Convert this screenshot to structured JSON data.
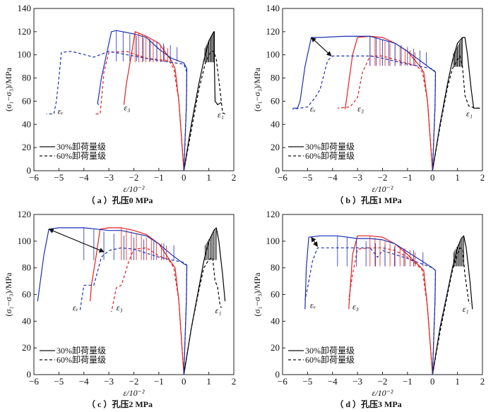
{
  "chart_data": [
    {
      "type": "line",
      "panel": "a",
      "caption": "（ a ）孔压0 MPa",
      "xlabel": "ε/10⁻²",
      "ylabel": "(σ₁−σ₃)/MPa",
      "xlim": [
        -6,
        2
      ],
      "ylim": [
        0,
        140
      ],
      "xticks": [
        -6,
        -5,
        -4,
        -3,
        -2,
        -1,
        0,
        1,
        2
      ],
      "yticks": [
        0,
        20,
        40,
        60,
        80,
        100,
        120,
        140
      ],
      "legend": {
        "position": "bottom-left",
        "entries": [
          {
            "label": "30%卸荷量级",
            "style": "solid"
          },
          {
            "label": "60%卸荷量级",
            "style": "dashed"
          }
        ]
      },
      "annotations": [
        {
          "text": "εv",
          "x": -5.05,
          "y": 49
        },
        {
          "text": "ε3",
          "x": -2.4,
          "y": 52
        },
        {
          "text": "ε1",
          "x": 1.35,
          "y": 46
        }
      ],
      "series": [
        {
          "name": "ε1 30%",
          "color": "#000000",
          "style": "solid",
          "x": [
            0,
            0.3,
            0.6,
            0.8,
            1.0,
            1.15,
            1.2,
            1.22,
            1.22,
            1.25,
            1.35,
            1.5
          ],
          "y": [
            0,
            40,
            75,
            95,
            112,
            118,
            120,
            120,
            95,
            60,
            57,
            59
          ]
        },
        {
          "name": "ε1 60%",
          "color": "#000000",
          "style": "dashed",
          "x": [
            0,
            0.3,
            0.6,
            0.85,
            1.0,
            1.1,
            1.2,
            1.3,
            1.45,
            1.55,
            1.65
          ],
          "y": [
            0,
            35,
            70,
            92,
            100,
            103,
            103,
            96,
            70,
            50,
            49
          ]
        },
        {
          "name": "ε3 30%",
          "color": "#e02020",
          "style": "solid",
          "x": [
            0,
            -0.2,
            -0.35,
            -0.5,
            -1.0,
            -1.5,
            -1.95,
            -2.1,
            -2.3,
            -2.4
          ],
          "y": [
            0,
            60,
            88,
            95,
            110,
            116,
            120,
            100,
            75,
            57
          ]
        },
        {
          "name": "ε3 60%",
          "color": "#e02020",
          "style": "dashed",
          "x": [
            0,
            -0.2,
            -0.4,
            -0.6,
            -1.5,
            -2.3,
            -3.0,
            -3.2,
            -3.3,
            -3.35,
            -3.6
          ],
          "y": [
            0,
            60,
            88,
            95,
            97,
            103,
            102,
            85,
            60,
            49,
            49
          ]
        },
        {
          "name": "εv 30%",
          "color": "#1a2fb0",
          "style": "solid",
          "x": [
            0,
            0.1,
            0.12,
            0.0,
            -0.5,
            -1.0,
            -1.5,
            -2.0,
            -2.7,
            -2.9,
            -3.1,
            -3.3,
            -3.45,
            -3.4
          ],
          "y": [
            0,
            55,
            88,
            93,
            97,
            105,
            115,
            118,
            121,
            120,
            100,
            80,
            58,
            57
          ]
        },
        {
          "name": "εv 60%",
          "color": "#1a2fb0",
          "style": "dashed",
          "x": [
            0,
            0.1,
            0.12,
            0.0,
            -1.0,
            -2.0,
            -3.0,
            -3.6,
            -4.5,
            -4.9,
            -5.0,
            -5.1,
            -5.2,
            -5.5
          ],
          "y": [
            0,
            55,
            85,
            92,
            95,
            99,
            103,
            98,
            103,
            102,
            80,
            60,
            49,
            49
          ]
        }
      ]
    },
    {
      "type": "line",
      "panel": "b",
      "caption": "（ b ）孔压1 MPa",
      "xlabel": "ε/10⁻²",
      "ylabel": "(σ₁−σ₃)/MPa",
      "xlim": [
        -6,
        2
      ],
      "ylim": [
        0,
        140
      ],
      "xticks": [
        -6,
        -5,
        -4,
        -3,
        -2,
        -1,
        0,
        1,
        2
      ],
      "yticks": [
        0,
        20,
        40,
        60,
        80,
        100,
        120,
        140
      ],
      "legend": {
        "position": "bottom-left",
        "entries": [
          {
            "label": "30%卸荷量级",
            "style": "solid"
          },
          {
            "label": "60%卸荷量级",
            "style": "dashed"
          }
        ]
      },
      "annotations": [
        {
          "text": "εv",
          "x": -4.9,
          "y": 51
        },
        {
          "text": "ε3",
          "x": -3.0,
          "y": 51
        },
        {
          "text": "ε1",
          "x": 1.35,
          "y": 47
        }
      ],
      "series": [
        {
          "name": "ε1 30%",
          "color": "#000000",
          "style": "solid",
          "x": [
            0,
            0.3,
            0.6,
            0.8,
            1.0,
            1.2,
            1.3,
            1.4,
            1.55,
            1.65,
            1.9
          ],
          "y": [
            0,
            40,
            75,
            95,
            110,
            115,
            115,
            100,
            70,
            54,
            54
          ]
        },
        {
          "name": "ε1 60%",
          "color": "#000000",
          "style": "dashed",
          "x": [
            0,
            0.3,
            0.6,
            0.8,
            1.0,
            1.1,
            1.2,
            1.3,
            1.45,
            1.7,
            1.9
          ],
          "y": [
            0,
            38,
            72,
            88,
            96,
            99,
            90,
            65,
            56,
            54,
            54
          ]
        },
        {
          "name": "ε3 30%",
          "color": "#e02020",
          "style": "solid",
          "x": [
            0,
            -0.2,
            -0.35,
            -0.5,
            -1.0,
            -1.5,
            -2.0,
            -2.5,
            -3.0,
            -3.2,
            -3.45,
            -3.5
          ],
          "y": [
            0,
            60,
            85,
            90,
            103,
            110,
            115,
            116,
            115,
            100,
            60,
            53
          ]
        },
        {
          "name": "ε3 60%",
          "color": "#e02020",
          "style": "dashed",
          "x": [
            0,
            -0.2,
            -0.4,
            -0.6,
            -1.5,
            -2.0,
            -2.5,
            -2.8,
            -3.0,
            -3.3,
            -3.8
          ],
          "y": [
            0,
            60,
            85,
            90,
            96,
            99,
            99,
            85,
            63,
            55,
            54
          ]
        },
        {
          "name": "εv 30%",
          "color": "#1a2fb0",
          "style": "solid",
          "x": [
            0,
            0.1,
            0.12,
            0.0,
            -0.5,
            -1.0,
            -1.5,
            -2.5,
            -3.5,
            -4.5,
            -4.85,
            -5.1,
            -5.3,
            -5.4,
            -5.6
          ],
          "y": [
            0,
            55,
            85,
            87,
            95,
            103,
            110,
            116,
            116,
            115,
            115,
            90,
            60,
            54,
            54
          ]
        },
        {
          "name": "εv 60%",
          "color": "#1a2fb0",
          "style": "dashed",
          "x": [
            0,
            0.1,
            0.12,
            0.0,
            -1.0,
            -2.0,
            -2.5,
            -3.0,
            -4.0,
            -4.2,
            -4.5,
            -4.7,
            -5.0,
            -5.6
          ],
          "y": [
            0,
            55,
            85,
            88,
            92,
            97,
            99,
            99,
            99,
            95,
            70,
            63,
            55,
            53
          ]
        }
      ],
      "arrow": {
        "from": [
          -4.85,
          115
        ],
        "to": [
          -4.05,
          99
        ]
      }
    },
    {
      "type": "line",
      "panel": "c",
      "caption": "（ c ）孔压2 MPa",
      "xlabel": "ε/10⁻²",
      "ylabel": "(σ₁−σ₃)/MPa",
      "xlim": [
        -6,
        2
      ],
      "ylim": [
        0,
        120
      ],
      "xticks": [
        -6,
        -5,
        -4,
        -3,
        -2,
        -1,
        0,
        1,
        2
      ],
      "yticks": [
        0,
        20,
        40,
        60,
        80,
        100,
        120
      ],
      "legend": {
        "position": "bottom-left",
        "entries": [
          {
            "label": "30%卸荷量级",
            "style": "solid"
          },
          {
            "label": "60%卸荷量级",
            "style": "dashed"
          }
        ]
      },
      "annotations": [
        {
          "text": "εv",
          "x": -4.45,
          "y": 48
        },
        {
          "text": "ε3",
          "x": -2.7,
          "y": 48
        },
        {
          "text": "ε1",
          "x": 1.25,
          "y": 46
        }
      ],
      "series": [
        {
          "name": "ε1 30%",
          "color": "#000000",
          "style": "solid",
          "x": [
            0,
            0.3,
            0.6,
            0.8,
            1.0,
            1.2,
            1.3,
            1.4,
            1.55,
            1.65
          ],
          "y": [
            0,
            35,
            65,
            85,
            100,
            108,
            110,
            100,
            75,
            55
          ]
        },
        {
          "name": "ε1 60%",
          "color": "#000000",
          "style": "dashed",
          "x": [
            0,
            0.3,
            0.6,
            0.8,
            1.0,
            1.15,
            1.25,
            1.35,
            1.45,
            1.5
          ],
          "y": [
            0,
            35,
            63,
            80,
            86,
            88,
            70,
            66,
            52,
            50
          ]
        },
        {
          "name": "ε3 30%",
          "color": "#e02020",
          "style": "solid",
          "x": [
            0,
            -0.2,
            -0.35,
            -0.5,
            -1.0,
            -1.5,
            -2.0,
            -2.5,
            -3.0,
            -3.35,
            -3.5,
            -3.7,
            -3.75
          ],
          "y": [
            0,
            55,
            80,
            84,
            98,
            105,
            108,
            110,
            110,
            109,
            90,
            67,
            55
          ]
        },
        {
          "name": "ε3 60%",
          "color": "#e02020",
          "style": "dashed",
          "x": [
            0,
            -0.2,
            -0.4,
            -0.6,
            -1.0,
            -1.5,
            -2.0,
            -2.2,
            -2.5,
            -2.7,
            -2.9
          ],
          "y": [
            0,
            55,
            80,
            86,
            89,
            95,
            94,
            85,
            67,
            65,
            47
          ]
        },
        {
          "name": "εv 30%",
          "color": "#1a2fb0",
          "style": "solid",
          "x": [
            0,
            0.1,
            0.12,
            0.0,
            -0.5,
            -1.0,
            -1.5,
            -2.5,
            -3.0,
            -3.5,
            -4.0,
            -5.0,
            -5.4,
            -5.6,
            -5.85
          ],
          "y": [
            0,
            55,
            82,
            83,
            90,
            98,
            104,
            108,
            108,
            109,
            110,
            110,
            109,
            90,
            55
          ]
        },
        {
          "name": "εv 60%",
          "color": "#1a2fb0",
          "style": "dashed",
          "x": [
            0,
            0.1,
            0.12,
            0.0,
            -1.0,
            -2.0,
            -2.5,
            -3.0,
            -3.3,
            -3.6,
            -4.0,
            -4.1,
            -4.15
          ],
          "y": [
            0,
            55,
            82,
            84,
            88,
            94,
            95,
            93,
            88,
            67,
            67,
            55,
            48
          ]
        }
      ],
      "arrow": {
        "from": [
          -5.4,
          109
        ],
        "to": [
          -3.2,
          92
        ]
      }
    },
    {
      "type": "line",
      "panel": "d",
      "caption": "（ d ）孔压3 MPa",
      "xlabel": "ε/10⁻²",
      "ylabel": "(σ₁−σ₃)/MPa",
      "xlim": [
        -6,
        2
      ],
      "ylim": [
        0,
        120
      ],
      "xticks": [
        -6,
        -5,
        -4,
        -3,
        -2,
        -1,
        0,
        1,
        2
      ],
      "yticks": [
        0,
        20,
        40,
        60,
        80,
        100,
        120
      ],
      "legend": {
        "position": "bottom-left",
        "entries": [
          {
            "label": "30%卸荷量级",
            "style": "solid"
          },
          {
            "label": "60%卸荷量级",
            "style": "dashed"
          }
        ]
      },
      "annotations": [
        {
          "text": "εv",
          "x": -4.9,
          "y": 50
        },
        {
          "text": "ε3",
          "x": -3.2,
          "y": 49
        },
        {
          "text": "ε1",
          "x": 1.2,
          "y": 47
        }
      ],
      "series": [
        {
          "name": "ε1 30%",
          "color": "#000000",
          "style": "solid",
          "x": [
            0,
            0.3,
            0.6,
            0.8,
            1.0,
            1.15,
            1.25,
            1.35,
            1.5,
            1.6
          ],
          "y": [
            0,
            35,
            62,
            80,
            95,
            102,
            104,
            95,
            70,
            49
          ]
        },
        {
          "name": "ε1 60%",
          "color": "#000000",
          "style": "dashed",
          "x": [
            0,
            0.3,
            0.6,
            0.8,
            1.0,
            1.1,
            1.2,
            1.3,
            1.45,
            1.5
          ],
          "y": [
            0,
            32,
            60,
            78,
            90,
            95,
            94,
            75,
            55,
            53
          ]
        },
        {
          "name": "ε3 30%",
          "color": "#e02020",
          "style": "solid",
          "x": [
            0,
            -0.2,
            -0.35,
            -0.5,
            -1.0,
            -1.5,
            -2.0,
            -2.5,
            -3.0,
            -3.2,
            -3.35
          ],
          "y": [
            0,
            50,
            78,
            81,
            90,
            98,
            103,
            104,
            104,
            90,
            49
          ]
        },
        {
          "name": "ε3 60%",
          "color": "#e02020",
          "style": "dashed",
          "x": [
            0,
            -0.2,
            -0.4,
            -0.6,
            -1.0,
            -1.5,
            -2.0,
            -2.5,
            -3.0,
            -3.2,
            -3.35
          ],
          "y": [
            0,
            50,
            78,
            82,
            88,
            93,
            95,
            95,
            94,
            75,
            56
          ]
        },
        {
          "name": "εv 30%",
          "color": "#1a2fb0",
          "style": "solid",
          "x": [
            0,
            0.1,
            0.12,
            0.0,
            -0.5,
            -1.0,
            -1.5,
            -2.0,
            -2.5,
            -3.0,
            -3.8,
            -4.5,
            -4.95,
            -5.05,
            -5.1
          ],
          "y": [
            0,
            55,
            78,
            80,
            86,
            92,
            98,
            101,
            102,
            102,
            104,
            104,
            103,
            80,
            49
          ]
        },
        {
          "name": "εv 60%",
          "color": "#1a2fb0",
          "style": "dashed",
          "x": [
            0,
            0.1,
            0.12,
            0.0,
            -1.0,
            -2.0,
            -2.2,
            -2.5,
            -3.5,
            -4.6,
            -4.8,
            -5.0,
            -5.1
          ],
          "y": [
            0,
            55,
            78,
            80,
            87,
            93,
            88,
            95,
            95,
            95,
            85,
            65,
            56
          ]
        }
      ],
      "arrow": {
        "from": [
          -4.85,
          103
        ],
        "to": [
          -4.6,
          96
        ]
      }
    }
  ]
}
